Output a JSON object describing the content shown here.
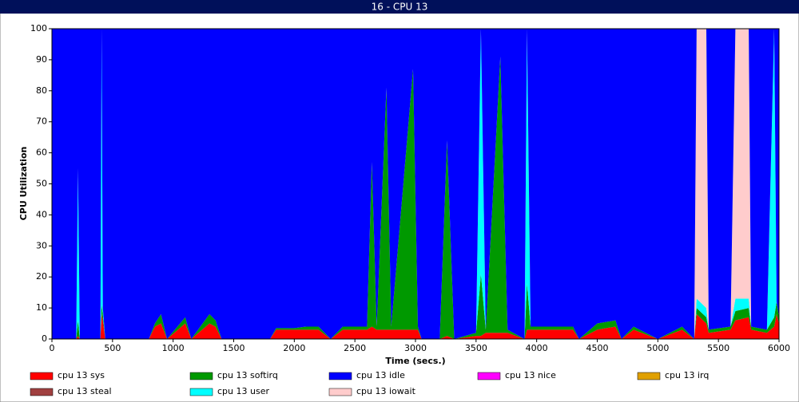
{
  "chart_data": {
    "type": "stacked-area",
    "title": "16 - CPU 13",
    "x_label": "Time (secs.)",
    "y_label": "CPU Utilization",
    "xlim": [
      0,
      6000
    ],
    "ylim": [
      0,
      100
    ],
    "xticks": [
      0,
      500,
      1000,
      1500,
      2000,
      2500,
      3000,
      3500,
      4000,
      4500,
      5000,
      5500,
      6000
    ],
    "yticks": [
      0,
      10,
      20,
      30,
      40,
      50,
      60,
      70,
      80,
      90,
      100
    ],
    "grid": false,
    "legend": "bottom",
    "x": [
      0,
      200,
      215,
      230,
      400,
      410,
      420,
      440,
      800,
      850,
      900,
      950,
      1100,
      1150,
      1300,
      1350,
      1400,
      1800,
      1850,
      2000,
      2100,
      2200,
      2300,
      2400,
      2600,
      2640,
      2680,
      2760,
      2800,
      2980,
      3020,
      3050,
      3200,
      3260,
      3320,
      3500,
      3540,
      3580,
      3700,
      3760,
      3900,
      3920,
      3950,
      4300,
      4350,
      4500,
      4650,
      4700,
      4800,
      5000,
      5200,
      5300,
      5320,
      5400,
      5420,
      5600,
      5640,
      5750,
      5770,
      5900,
      5960,
      5980,
      6000
    ],
    "series": [
      {
        "name": "cpu 13 sys",
        "color": "#ff0000",
        "values": [
          0,
          0,
          1,
          0,
          0,
          8,
          6,
          0,
          0,
          4,
          5,
          0,
          5,
          0,
          5,
          4,
          0,
          0,
          3,
          3,
          3,
          3,
          0,
          3,
          3,
          4,
          3,
          3,
          3,
          3,
          3,
          0,
          0,
          1,
          0,
          1,
          1,
          2,
          2,
          2,
          0,
          3,
          3,
          3,
          0,
          3,
          4,
          0,
          3,
          0,
          3,
          0,
          8,
          5,
          2,
          3,
          6,
          7,
          3,
          2,
          4,
          8,
          5
        ]
      },
      {
        "name": "cpu 13 softirq",
        "color": "#009900",
        "values": [
          0,
          0,
          5,
          0,
          0,
          3,
          2,
          0,
          0,
          1,
          3,
          0,
          2,
          0,
          3,
          2,
          0,
          0,
          0.5,
          0.5,
          1,
          1,
          0,
          1,
          1,
          53,
          1,
          78,
          1,
          84,
          1,
          0,
          0,
          63,
          0,
          1,
          20,
          1,
          89,
          1,
          0,
          15,
          1,
          1,
          0,
          2,
          2,
          0,
          1,
          0,
          1,
          0,
          2,
          2,
          1,
          1,
          3,
          3,
          1,
          1,
          3,
          4,
          2
        ]
      },
      {
        "name": "cpu 13 idle",
        "color": "#0000ff",
        "values": [
          100,
          100,
          45,
          100,
          100,
          0,
          90,
          100,
          100,
          95,
          92,
          100,
          93,
          100,
          92,
          94,
          100,
          100,
          96.5,
          96.5,
          96,
          96,
          100,
          96,
          96,
          43,
          96,
          19,
          96,
          13,
          96,
          100,
          100,
          36,
          100,
          98,
          0,
          97,
          9,
          97,
          100,
          0,
          96,
          96,
          100,
          95,
          94,
          100,
          96,
          100,
          96,
          100,
          0,
          0,
          97,
          96,
          0,
          0,
          96,
          97,
          0,
          88,
          93
        ]
      },
      {
        "name": "cpu 13 nice",
        "color": "#ff00ff",
        "values": [
          0,
          0,
          0,
          0,
          0,
          0,
          0,
          0,
          0,
          0,
          0,
          0,
          0,
          0,
          0,
          0,
          0,
          0,
          0,
          0,
          0,
          0,
          0,
          0,
          0,
          0,
          0,
          0,
          0,
          0,
          0,
          0,
          0,
          0,
          0,
          0,
          0,
          0,
          0,
          0,
          0,
          0,
          0,
          0,
          0,
          0,
          0,
          0,
          0,
          0,
          0,
          0,
          0,
          0,
          0,
          0,
          0,
          0,
          0,
          0,
          0,
          0,
          0
        ]
      },
      {
        "name": "cpu 13 irq",
        "color": "#e0a000",
        "values": [
          0,
          0,
          0,
          0,
          0,
          0,
          0,
          0,
          0,
          0,
          0,
          0,
          0,
          0,
          0,
          0,
          0,
          0,
          0,
          0,
          0,
          0,
          0,
          0,
          0,
          0,
          0,
          0,
          0,
          0,
          0,
          0,
          0,
          0,
          0,
          0,
          0,
          0,
          0,
          0,
          0,
          0,
          0,
          0,
          0,
          0,
          0,
          0,
          0,
          0,
          0,
          0,
          0,
          0,
          0,
          0,
          0,
          0,
          0,
          0,
          0,
          0,
          0
        ]
      },
      {
        "name": "cpu 13 steal",
        "color": "#a04040",
        "values": [
          0,
          0,
          0,
          0,
          0,
          0,
          0,
          0,
          0,
          0,
          0,
          0,
          0,
          0,
          0,
          0,
          0,
          0,
          0,
          0,
          0,
          0,
          0,
          0,
          0,
          0,
          0,
          0,
          0,
          0,
          0,
          0,
          0,
          0,
          0,
          0,
          0,
          0,
          0,
          0,
          0,
          0,
          0,
          0,
          0,
          0,
          0,
          0,
          0,
          0,
          0,
          0,
          0,
          0,
          0,
          0,
          0,
          0,
          0,
          0,
          0,
          0,
          0
        ]
      },
      {
        "name": "cpu 13 user",
        "color": "#00ffff",
        "values": [
          0,
          0,
          49,
          0,
          0,
          89,
          2,
          0,
          0,
          0,
          0,
          0,
          0,
          0,
          0,
          0,
          0,
          0,
          0,
          0,
          0,
          0,
          0,
          0,
          0,
          0,
          0,
          0,
          0,
          0,
          0,
          0,
          0,
          0,
          0,
          0,
          79,
          0,
          0,
          0,
          0,
          82,
          0,
          0,
          0,
          0,
          0,
          0,
          0,
          0,
          0,
          0,
          3,
          3,
          0,
          0,
          4,
          3,
          0,
          0,
          93,
          0,
          0
        ]
      },
      {
        "name": "cpu 13 iowait",
        "color": "#ffcccc",
        "values": [
          0,
          0,
          0,
          0,
          0,
          0,
          0,
          0,
          0,
          0,
          0,
          0,
          0,
          0,
          0,
          0,
          0,
          0,
          0,
          0,
          0,
          0,
          0,
          0,
          0,
          0,
          0,
          0,
          0,
          0,
          0,
          0,
          0,
          0,
          0,
          0,
          0,
          0,
          0,
          0,
          0,
          0,
          0,
          0,
          0,
          0,
          0,
          0,
          0,
          0,
          0,
          0,
          87,
          90,
          0,
          0,
          87,
          87,
          0,
          0,
          0,
          0,
          0
        ]
      }
    ]
  }
}
